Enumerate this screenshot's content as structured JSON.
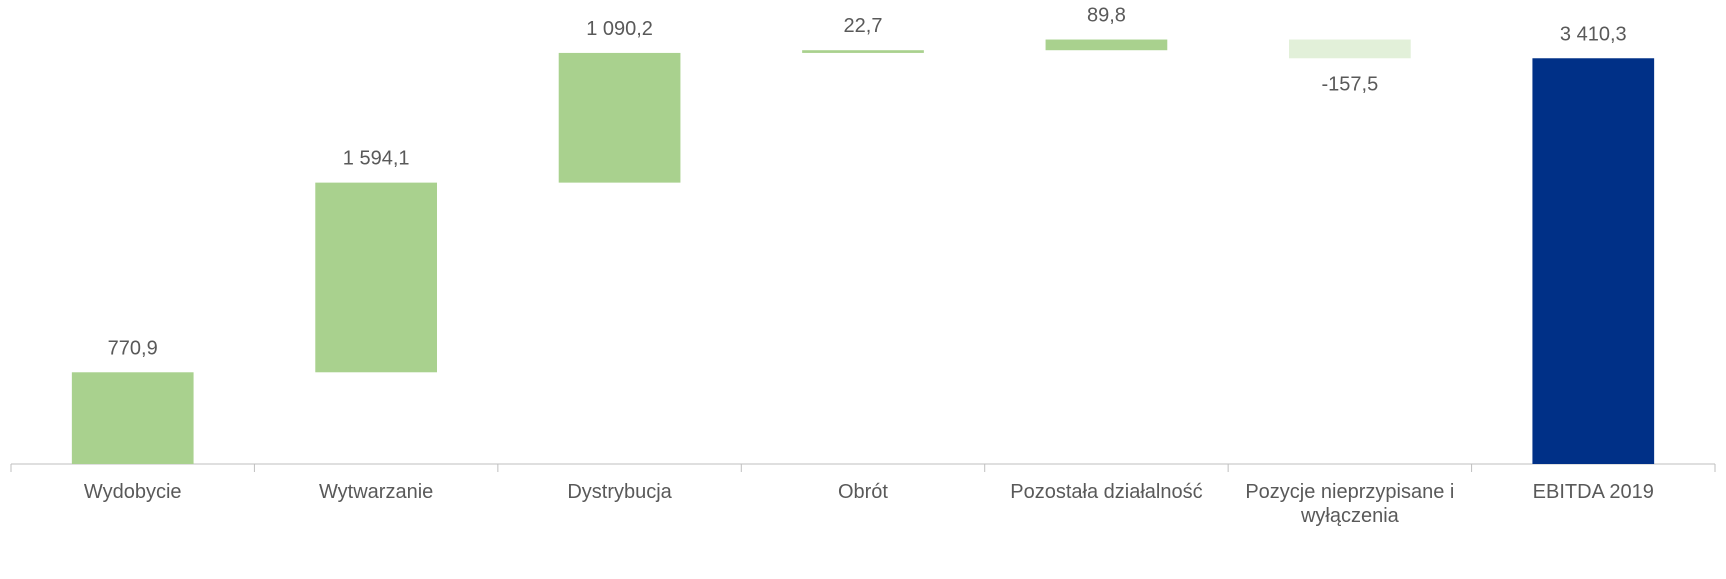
{
  "chart_data": {
    "type": "waterfall",
    "categories": [
      "Wydobycie",
      "Wytwarzanie",
      "Dystrybucja",
      "Obrót",
      "Pozostała działalność",
      "Pozycje nieprzypisane i wyłączenia",
      "EBITDA 2019"
    ],
    "values": [
      770.9,
      1594.1,
      1090.2,
      22.7,
      89.8,
      -157.5,
      3410.3
    ],
    "value_labels": [
      "770,9",
      "1 594,1",
      "1 090,2",
      "22,7",
      "89,8",
      "-157,5",
      "3 410,3"
    ],
    "color": "#a9d18e",
    "negative_color": "#e2f0d9",
    "total_color": "#003087",
    "ylim": [
      0,
      3900
    ]
  }
}
